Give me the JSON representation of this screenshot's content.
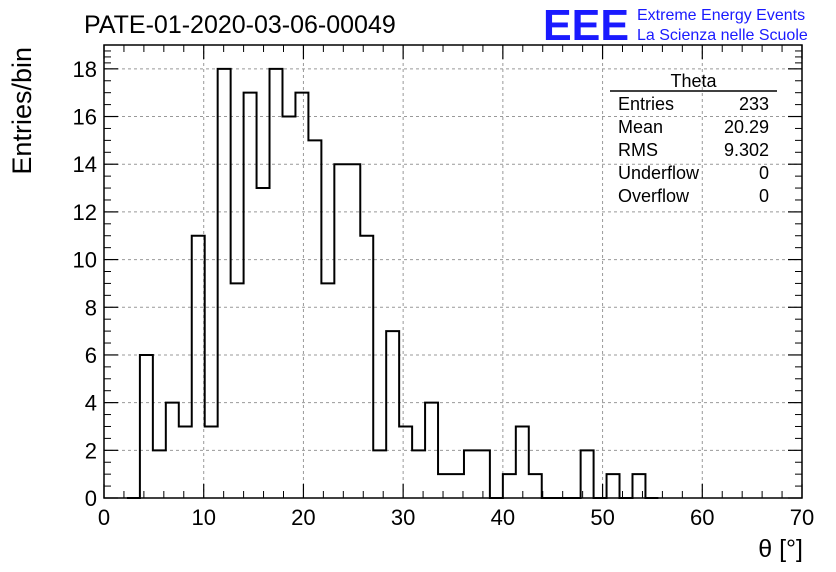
{
  "chart_data": {
    "type": "bar",
    "title": "PATE-01-2020-03-06-00049",
    "xlabel": "θ [°]",
    "ylabel": "Entries/bin",
    "xlim": [
      0,
      70
    ],
    "ylim": [
      0,
      19
    ],
    "xticks": [
      0,
      10,
      20,
      30,
      40,
      50,
      60,
      70
    ],
    "yticks": [
      0,
      2,
      4,
      6,
      8,
      10,
      12,
      14,
      16,
      18
    ],
    "grid": true,
    "bin_width": 1.3,
    "bins_start": 2.3,
    "values": [
      0,
      6,
      2,
      4,
      3,
      11,
      3,
      18,
      9,
      17,
      13,
      18,
      16,
      17,
      15,
      9,
      14,
      14,
      11,
      2,
      7,
      3,
      2,
      4,
      1,
      1,
      2,
      2,
      0,
      1,
      3,
      1,
      0,
      0,
      0,
      2,
      0,
      1,
      0,
      1,
      0
    ],
    "stats_box": {
      "title": "Theta",
      "rows": [
        {
          "label": "Entries",
          "value": "233"
        },
        {
          "label": "Mean",
          "value": "20.29"
        },
        {
          "label": "RMS",
          "value": "9.302"
        },
        {
          "label": "Underflow",
          "value": "0"
        },
        {
          "label": "Overflow",
          "value": "0"
        }
      ]
    }
  },
  "logo": {
    "mark": "EEE",
    "line1": "Extreme Energy Events",
    "line2": "La Scienza nelle Scuole",
    "color": "#1a1aff"
  }
}
